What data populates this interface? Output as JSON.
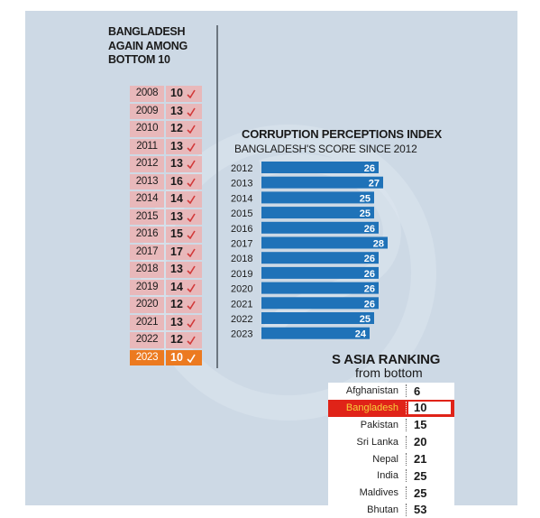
{
  "colors": {
    "panel_background": "#cdd9e5",
    "rank_cell": "#e8b8ba",
    "rank_highlight": "#ec7a20",
    "bar": "#1f72b8",
    "south_asia_highlight": "#e02318",
    "south_asia_highlight_text": "#f7d23a",
    "tick_mark": "#d23a3a"
  },
  "left_panel": {
    "title_lines": [
      "BANGLADESH",
      "AGAIN AMONG",
      "BOTTOM 10"
    ],
    "rows": [
      {
        "year": "2008",
        "rank": "10"
      },
      {
        "year": "2009",
        "rank": "13"
      },
      {
        "year": "2010",
        "rank": "12"
      },
      {
        "year": "2011",
        "rank": "13"
      },
      {
        "year": "2012",
        "rank": "13"
      },
      {
        "year": "2013",
        "rank": "16"
      },
      {
        "year": "2014",
        "rank": "14"
      },
      {
        "year": "2015",
        "rank": "13"
      },
      {
        "year": "2016",
        "rank": "15"
      },
      {
        "year": "2017",
        "rank": "17"
      },
      {
        "year": "2018",
        "rank": "13"
      },
      {
        "year": "2019",
        "rank": "14"
      },
      {
        "year": "2020",
        "rank": "12"
      },
      {
        "year": "2021",
        "rank": "13"
      },
      {
        "year": "2022",
        "rank": "12"
      },
      {
        "year": "2023",
        "rank": "10",
        "highlight": true
      }
    ]
  },
  "chart_data": [
    {
      "type": "bar",
      "orientation": "horizontal",
      "title": "CORRUPTION PERCEPTIONS INDEX",
      "subtitle": "BANGLADESH'S SCORE SINCE 2012",
      "categories": [
        "2012",
        "2013",
        "2014",
        "2015",
        "2016",
        "2017",
        "2018",
        "2019",
        "2020",
        "2021",
        "2022",
        "2023"
      ],
      "values": [
        26,
        27,
        25,
        25,
        26,
        28,
        26,
        26,
        26,
        26,
        25,
        24
      ],
      "data_labels": [
        "26",
        "27",
        "25",
        "25",
        "26",
        "28",
        "26",
        "26",
        "26",
        "26",
        "25",
        "24"
      ],
      "xlabel": "",
      "ylabel": "",
      "xlim": [
        0,
        28
      ],
      "grid": false,
      "legend": "none",
      "axis_labels_shown": false
    },
    {
      "type": "table",
      "title": "S ASIA RANKING",
      "subtitle": "from bottom",
      "rows": [
        {
          "country": "Afghanistan",
          "rank": "6"
        },
        {
          "country": "Bangladesh",
          "rank": "10",
          "highlight": true
        },
        {
          "country": "Pakistan",
          "rank": "15"
        },
        {
          "country": "Sri Lanka",
          "rank": "20"
        },
        {
          "country": "Nepal",
          "rank": "21"
        },
        {
          "country": "India",
          "rank": "25"
        },
        {
          "country": "Maldives",
          "rank": "25"
        },
        {
          "country": "Bhutan",
          "rank": "53"
        }
      ]
    }
  ]
}
